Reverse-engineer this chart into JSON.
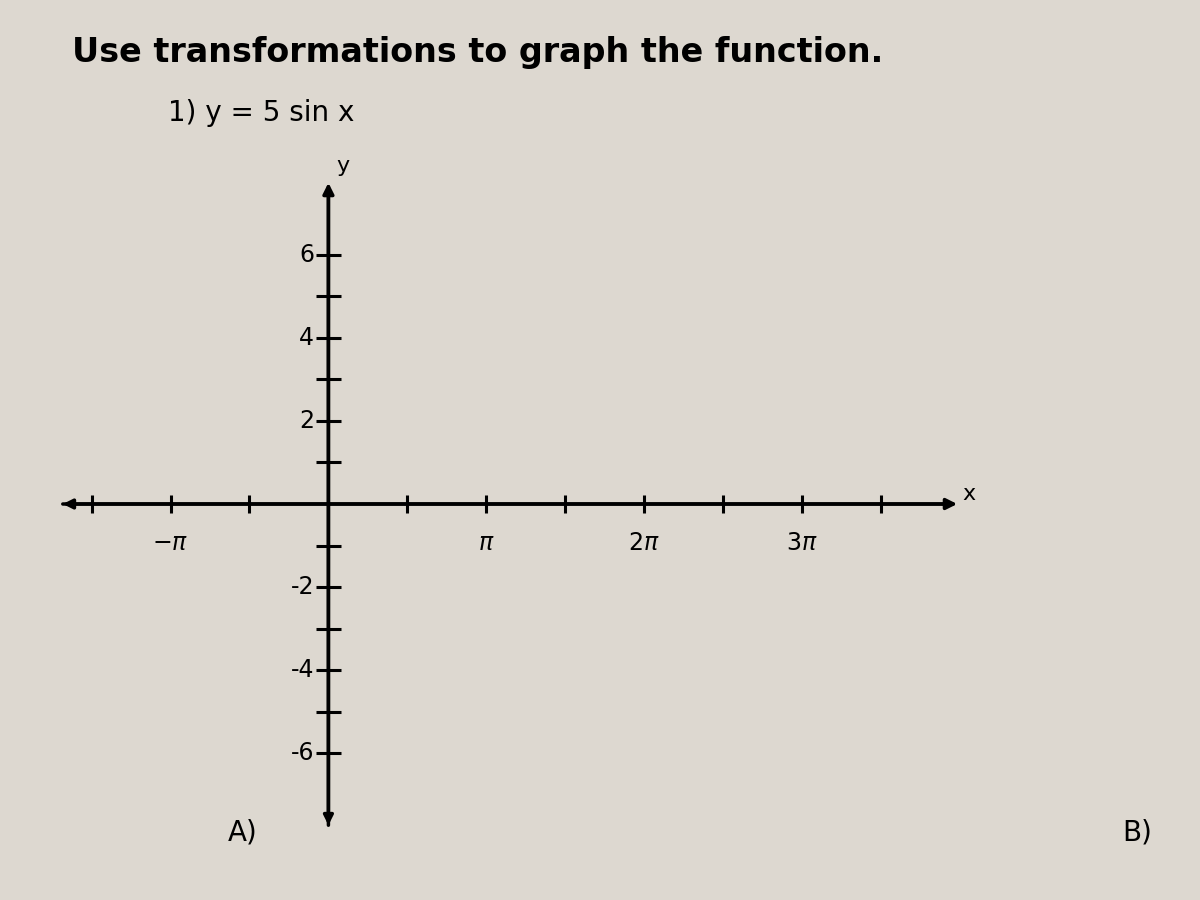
{
  "title_line1": "Use transformations to graph the function.",
  "title_line2": "1) y = 5 sin x",
  "bg_color": "#ddd8d0",
  "axes_color": "#000000",
  "text_color": "#000000",
  "inner_bg": "#e8e5e0",
  "xlim_left": -1.7,
  "xlim_right": 4.0,
  "ylim_bottom": -7.8,
  "ylim_top": 7.8,
  "x_axis_label": "x",
  "y_axis_label": "y",
  "label_A": "A)",
  "label_B": "B)",
  "arrow_lw": 2.5,
  "tick_lw": 2.2,
  "font_size_title1": 24,
  "font_size_title2": 20,
  "font_size_tick": 17,
  "font_size_axis": 16,
  "font_size_label": 20
}
